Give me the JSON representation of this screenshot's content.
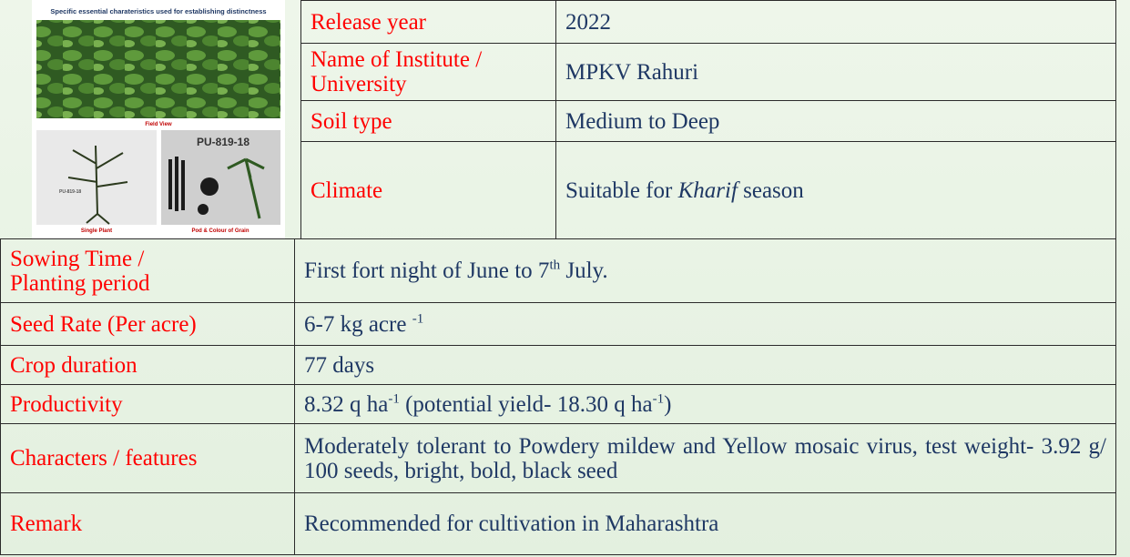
{
  "image": {
    "heading": "Specific essential charateristics used for establishing distinctness",
    "field_caption": "Field View",
    "plant_tag": "PU-819-18",
    "plant_caption": "Single Plant",
    "pod_tag": "PU-819-18",
    "pod_caption": "Pod & Colour of Grain"
  },
  "top_rows": [
    {
      "label": [
        "Release year"
      ],
      "value": [
        {
          "text": "2022"
        }
      ]
    },
    {
      "label": [
        "Name of Institute /",
        "University"
      ],
      "value": [
        {
          "text": "MPKV Rahuri"
        }
      ]
    },
    {
      "label": [
        "Soil type"
      ],
      "value": [
        {
          "text": "Medium to Deep"
        }
      ]
    },
    {
      "label": [
        "Climate"
      ],
      "value": [
        {
          "text": "Suitable for "
        },
        {
          "text": "Kharif",
          "style": "italic"
        },
        {
          "text": " season"
        }
      ]
    }
  ],
  "rows": [
    {
      "label": [
        "Sowing Time  /",
        "Planting  period"
      ],
      "value": [
        {
          "text": "First fort night of June to 7"
        },
        {
          "text": "th",
          "style": "sup"
        },
        {
          "text": " July."
        }
      ]
    },
    {
      "label": [
        "Seed Rate  (Per acre)"
      ],
      "value": [
        {
          "text": "6-7 kg acre "
        },
        {
          "text": "-1",
          "style": "sup"
        }
      ]
    },
    {
      "label": [
        "Crop duration"
      ],
      "value": [
        {
          "text": "77 days"
        }
      ]
    },
    {
      "label": [
        "Productivity"
      ],
      "value": [
        {
          "text": "8.32 q ha"
        },
        {
          "text": "-1",
          "style": "sup"
        },
        {
          "text": " (potential yield- 18.30 q ha"
        },
        {
          "text": "-1",
          "style": "sup"
        },
        {
          "text": ")"
        }
      ]
    },
    {
      "label": [
        "Characters / features"
      ],
      "value": [
        {
          "text": "Moderately tolerant to Powdery mildew and Yellow mosaic virus, test weight- 3.92 g/ 100 seeds, bright, bold, black seed"
        }
      ]
    },
    {
      "label": [
        "Remark"
      ],
      "value": [
        {
          "text": "Recommended for cultivation in Maharashtra"
        }
      ]
    }
  ]
}
